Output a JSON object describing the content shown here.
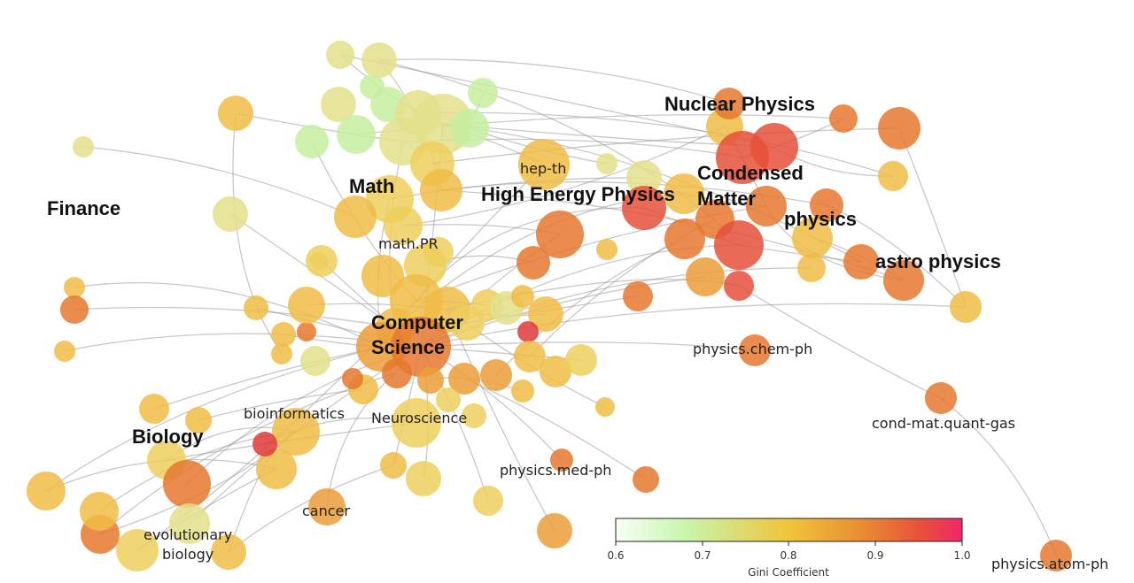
{
  "labels": {
    "finance": "Finance",
    "math": "Math",
    "math_pr": "math.PR",
    "hep_th": "hep-th",
    "high_energy": "High Energy Physics",
    "nuclear": "Nuclear Physics",
    "condensed_1": "Condensed",
    "condensed_2": "Matter",
    "physics": "physics",
    "astro": "astro physics",
    "cs_1": "Computer",
    "cs_2": "Science",
    "chem_ph": "physics.chem-ph",
    "quant_gas": "cond-mat.quant-gas",
    "atom_ph": "physics.atom-ph",
    "bioinformatics": "bioinformatics",
    "neuroscience": "Neuroscience",
    "biology": "Biology",
    "med_ph": "physics.med-ph",
    "cancer": "cancer",
    "evo_1": "evolutionary",
    "evo_2": "biology"
  },
  "colorbar": {
    "title": "Gini Coefficient",
    "ticks": [
      "0.6",
      "0.7",
      "0.8",
      "0.9",
      "1.0"
    ],
    "stops": [
      "#f7fff4",
      "#c8f5b0",
      "#f0c43a",
      "#e88a33",
      "#e8503a",
      "#f0286a"
    ]
  },
  "node_colors": {
    "lightgreen": "#c6eea0",
    "paleyellow": "#e3e089",
    "yellow": "#edcf5c",
    "lightorange": "#f0bc45",
    "orange": "#ec9d38",
    "darkorange": "#e5782f",
    "red": "#e5503a",
    "crimson": "#e03a3a"
  },
  "edge_color": "#9a9a9a"
}
